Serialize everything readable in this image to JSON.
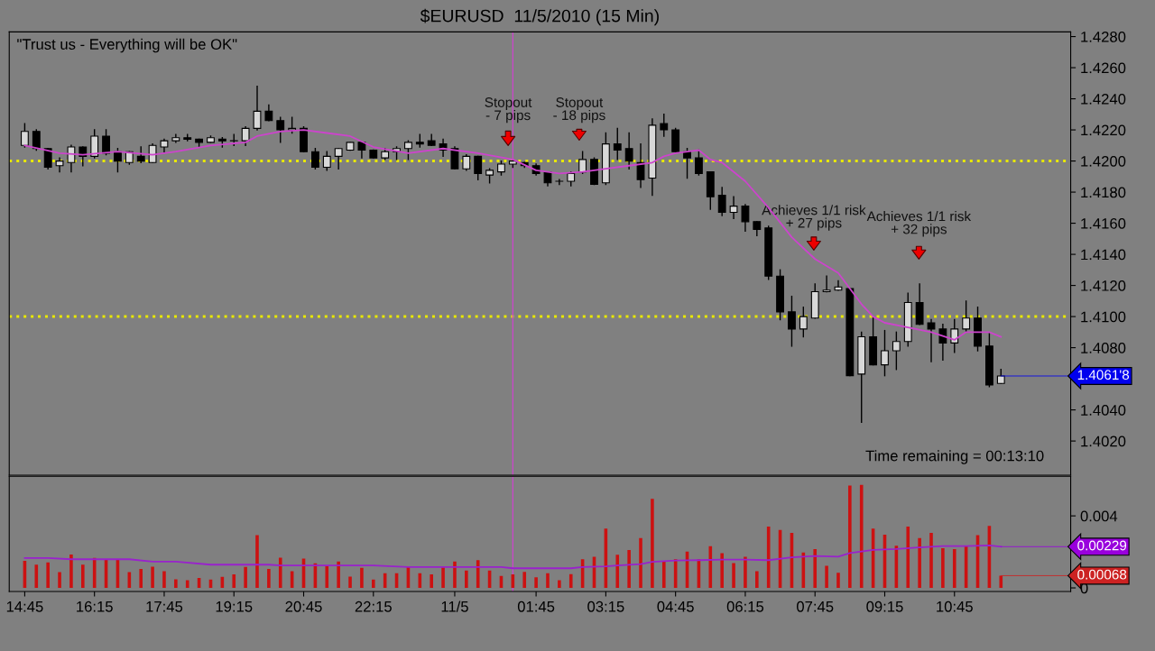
{
  "chart_data": [
    {
      "type": "candlestick",
      "title": "$EURUSD  11/5/2010 (15 Min)",
      "x": [
        "2010-11-04T14:45",
        "2010-11-04T15:00",
        "2010-11-04T15:15",
        "2010-11-04T15:30",
        "2010-11-04T15:45",
        "2010-11-04T16:00",
        "2010-11-04T16:15",
        "2010-11-04T16:30",
        "2010-11-04T16:45",
        "2010-11-04T17:00",
        "2010-11-04T17:15",
        "2010-11-04T17:30",
        "2010-11-04T17:45",
        "2010-11-04T18:00",
        "2010-11-04T18:15",
        "2010-11-04T18:30",
        "2010-11-04T18:45",
        "2010-11-04T19:00",
        "2010-11-04T19:15",
        "2010-11-04T19:30",
        "2010-11-04T19:45",
        "2010-11-04T20:00",
        "2010-11-04T20:15",
        "2010-11-04T20:30",
        "2010-11-04T20:45",
        "2010-11-04T21:00",
        "2010-11-04T21:15",
        "2010-11-04T21:30",
        "2010-11-04T21:45",
        "2010-11-04T22:00",
        "2010-11-04T22:15",
        "2010-11-04T22:30",
        "2010-11-04T22:45",
        "2010-11-04T23:00",
        "2010-11-04T23:15",
        "2010-11-04T23:30",
        "2010-11-04T23:45",
        "2010-11-05T00:00",
        "2010-11-05T00:15",
        "2010-11-05T00:30",
        "2010-11-05T00:45",
        "2010-11-05T01:00",
        "2010-11-05T01:15",
        "2010-11-05T01:30",
        "2010-11-05T01:45",
        "2010-11-05T02:00",
        "2010-11-05T02:15",
        "2010-11-05T02:30",
        "2010-11-05T02:45",
        "2010-11-05T03:00",
        "2010-11-05T03:15",
        "2010-11-05T03:30",
        "2010-11-05T03:45",
        "2010-11-05T04:00",
        "2010-11-05T04:15",
        "2010-11-05T04:30",
        "2010-11-05T04:45",
        "2010-11-05T05:00",
        "2010-11-05T05:15",
        "2010-11-05T05:30",
        "2010-11-05T05:45",
        "2010-11-05T06:00",
        "2010-11-05T06:15",
        "2010-11-05T06:30",
        "2010-11-05T06:45",
        "2010-11-05T07:00",
        "2010-11-05T07:15",
        "2010-11-05T07:30",
        "2010-11-05T07:45",
        "2010-11-05T08:00",
        "2010-11-05T08:15",
        "2010-11-05T08:30",
        "2010-11-05T08:45",
        "2010-11-05T09:00",
        "2010-11-05T09:15",
        "2010-11-05T09:30",
        "2010-11-05T09:45",
        "2010-11-05T10:00",
        "2010-11-05T10:15",
        "2010-11-05T10:30",
        "2010-11-05T10:45",
        "2010-11-05T11:00",
        "2010-11-05T11:15",
        "2010-11-05T11:30",
        "2010-11-05T11:45"
      ],
      "ohlc": [
        [
          1.421,
          1.4224,
          1.4209,
          1.4219
        ],
        [
          1.4219,
          1.422,
          1.4207,
          1.4208
        ],
        [
          1.4208,
          1.4208,
          1.4195,
          1.4196
        ],
        [
          1.4197,
          1.4202,
          1.4193,
          1.42
        ],
        [
          1.4199,
          1.421,
          1.4193,
          1.4209
        ],
        [
          1.4209,
          1.4209,
          1.4197,
          1.4203
        ],
        [
          1.4203,
          1.422,
          1.4202,
          1.4216
        ],
        [
          1.4216,
          1.422,
          1.4204,
          1.4205
        ],
        [
          1.4206,
          1.4208,
          1.4193,
          1.42
        ],
        [
          1.4199,
          1.4206,
          1.4198,
          1.4206
        ],
        [
          1.4203,
          1.4209,
          1.4199,
          1.42
        ],
        [
          1.4199,
          1.4211,
          1.4199,
          1.421
        ],
        [
          1.4209,
          1.4214,
          1.4206,
          1.4213
        ],
        [
          1.4213,
          1.4217,
          1.4212,
          1.4215
        ],
        [
          1.4215,
          1.4217,
          1.4213,
          1.4214
        ],
        [
          1.4214,
          1.4214,
          1.4209,
          1.4212
        ],
        [
          1.4212,
          1.4216,
          1.4212,
          1.4215
        ],
        [
          1.4214,
          1.4215,
          1.4209,
          1.4213
        ],
        [
          1.4213,
          1.4217,
          1.421,
          1.4213
        ],
        [
          1.4213,
          1.4222,
          1.421,
          1.4221
        ],
        [
          1.4221,
          1.4248,
          1.422,
          1.4232
        ],
        [
          1.4232,
          1.4236,
          1.4226,
          1.4226
        ],
        [
          1.4226,
          1.4228,
          1.4212,
          1.422
        ],
        [
          1.422,
          1.4228,
          1.4218,
          1.4221
        ],
        [
          1.4221,
          1.4222,
          1.4206,
          1.4206
        ],
        [
          1.4206,
          1.4208,
          1.4195,
          1.4196
        ],
        [
          1.4196,
          1.4206,
          1.4194,
          1.4203
        ],
        [
          1.4203,
          1.4208,
          1.4195,
          1.4208
        ],
        [
          1.4207,
          1.4212,
          1.4207,
          1.4212
        ],
        [
          1.4212,
          1.4212,
          1.4202,
          1.4207
        ],
        [
          1.4207,
          1.4207,
          1.4202,
          1.4202
        ],
        [
          1.4202,
          1.4208,
          1.4201,
          1.4206
        ],
        [
          1.4206,
          1.4209,
          1.4201,
          1.4208
        ],
        [
          1.4208,
          1.4213,
          1.4201,
          1.4212
        ],
        [
          1.4212,
          1.4217,
          1.4209,
          1.4211
        ],
        [
          1.4213,
          1.4217,
          1.421,
          1.421
        ],
        [
          1.4211,
          1.4214,
          1.4203,
          1.4207
        ],
        [
          1.4208,
          1.4209,
          1.4195,
          1.4195
        ],
        [
          1.4195,
          1.4204,
          1.4194,
          1.4203
        ],
        [
          1.4203,
          1.4203,
          1.4188,
          1.4192
        ],
        [
          1.4191,
          1.4195,
          1.4186,
          1.4194
        ],
        [
          1.4193,
          1.42,
          1.4191,
          1.4198
        ],
        [
          1.4198,
          1.4201,
          1.4196,
          1.42
        ],
        [
          1.4199,
          1.4199,
          1.4196,
          1.4197
        ],
        [
          1.4197,
          1.4198,
          1.4191,
          1.4192
        ],
        [
          1.4193,
          1.4193,
          1.4184,
          1.4186
        ],
        [
          1.4187,
          1.4188,
          1.4185,
          1.4187
        ],
        [
          1.4187,
          1.4193,
          1.4184,
          1.4192
        ],
        [
          1.4193,
          1.4206,
          1.4192,
          1.4201
        ],
        [
          1.4201,
          1.4202,
          1.4185,
          1.4185
        ],
        [
          1.4186,
          1.4218,
          1.4185,
          1.4211
        ],
        [
          1.4211,
          1.4221,
          1.4201,
          1.4207
        ],
        [
          1.4208,
          1.4218,
          1.4195,
          1.42
        ],
        [
          1.4199,
          1.4211,
          1.4183,
          1.4188
        ],
        [
          1.4189,
          1.4227,
          1.4178,
          1.4223
        ],
        [
          1.4224,
          1.423,
          1.4216,
          1.422
        ],
        [
          1.422,
          1.4221,
          1.4206,
          1.4206
        ],
        [
          1.4206,
          1.4208,
          1.4189,
          1.4202
        ],
        [
          1.4202,
          1.4207,
          1.4191,
          1.4192
        ],
        [
          1.4193,
          1.4193,
          1.4169,
          1.4177
        ],
        [
          1.4178,
          1.4183,
          1.4165,
          1.4167
        ],
        [
          1.4167,
          1.4177,
          1.4163,
          1.4171
        ],
        [
          1.4171,
          1.4172,
          1.4155,
          1.4161
        ],
        [
          1.4161,
          1.4161,
          1.4152,
          1.4156
        ],
        [
          1.4157,
          1.4158,
          1.4124,
          1.4126
        ],
        [
          1.4126,
          1.413,
          1.4098,
          1.4103
        ],
        [
          1.4103,
          1.4113,
          1.4081,
          1.4092
        ],
        [
          1.4092,
          1.4106,
          1.4087,
          1.41
        ],
        [
          1.4099,
          1.4121,
          1.4099,
          1.4116
        ],
        [
          1.4116,
          1.4126,
          1.4116,
          1.4117
        ],
        [
          1.4117,
          1.4123,
          1.4117,
          1.4119
        ],
        [
          1.4118,
          1.4118,
          1.4062,
          1.4062
        ],
        [
          1.4063,
          1.409,
          1.4032,
          1.4087
        ],
        [
          1.4087,
          1.4099,
          1.4069,
          1.4069
        ],
        [
          1.4069,
          1.4091,
          1.4062,
          1.4078
        ],
        [
          1.4078,
          1.409,
          1.4066,
          1.4084
        ],
        [
          1.4084,
          1.4115,
          1.4081,
          1.4109
        ],
        [
          1.4109,
          1.4121,
          1.4095,
          1.4095
        ],
        [
          1.4096,
          1.4098,
          1.4071,
          1.4092
        ],
        [
          1.4092,
          1.4095,
          1.4072,
          1.4083
        ],
        [
          1.4083,
          1.4098,
          1.4077,
          1.4092
        ],
        [
          1.4092,
          1.411,
          1.409,
          1.4099
        ],
        [
          1.4099,
          1.4106,
          1.4078,
          1.4081
        ],
        [
          1.4081,
          1.4089,
          1.4055,
          1.4056
        ],
        [
          1.4057,
          1.4066,
          1.4057,
          1.40618
        ]
      ],
      "series": [
        {
          "type": "line",
          "color": "#cc44cc",
          "x": [
            "2010-11-04T14:45",
            "2010-11-04T15:30",
            "2010-11-04T16:00",
            "2010-11-04T16:45",
            "2010-11-04T17:30",
            "2010-11-04T18:00",
            "2010-11-04T18:45",
            "2010-11-04T19:30",
            "2010-11-04T19:45",
            "2010-11-04T20:15",
            "2010-11-04T20:45",
            "2010-11-04T21:15",
            "2010-11-04T21:45",
            "2010-11-04T22:15",
            "2010-11-04T23:00",
            "2010-11-04T23:45",
            "2010-11-05T00:30",
            "2010-11-05T01:15",
            "2010-11-05T01:45",
            "2010-11-05T02:15",
            "2010-11-05T02:45",
            "2010-11-05T03:15",
            "2010-11-05T03:45",
            "2010-11-05T04:15",
            "2010-11-05T04:30",
            "2010-11-05T04:45",
            "2010-11-05T05:15",
            "2010-11-05T05:30",
            "2010-11-05T05:45",
            "2010-11-05T06:15",
            "2010-11-05T06:45",
            "2010-11-05T07:15",
            "2010-11-05T07:45",
            "2010-11-05T08:15",
            "2010-11-05T08:30",
            "2010-11-05T08:45",
            "2010-11-05T09:00",
            "2010-11-05T09:15",
            "2010-11-05T09:45",
            "2010-11-05T10:15",
            "2010-11-05T10:45",
            "2010-11-05T11:00",
            "2010-11-05T11:15",
            "2010-11-05T11:30",
            "2010-11-05T11:45"
          ],
          "values": [
            1.421,
            1.4205,
            1.4204,
            1.4206,
            1.4204,
            1.4206,
            1.421,
            1.4212,
            1.4216,
            1.4219,
            1.422,
            1.4218,
            1.4216,
            1.4209,
            1.4205,
            1.4208,
            1.4205,
            1.4201,
            1.4194,
            1.4192,
            1.4193,
            1.4195,
            1.4197,
            1.4199,
            1.4203,
            1.4205,
            1.4207,
            1.4201,
            1.4199,
            1.4187,
            1.417,
            1.4151,
            1.4137,
            1.4128,
            1.4118,
            1.4108,
            1.41,
            1.4096,
            1.4093,
            1.409,
            1.4085,
            1.409,
            1.409,
            1.409,
            1.4087
          ]
        }
      ],
      "xlim": [
        "2010-11-04T14:25",
        "2010-11-05T13:15"
      ],
      "ylim": [
        1.3998,
        1.4283
      ],
      "yticks": [
        {
          "value": 1.402,
          "label": "1.4020"
        },
        {
          "value": 1.404,
          "label": "1.4040"
        },
        {
          "value": 1.408,
          "label": "1.4080"
        },
        {
          "value": 1.41,
          "label": "1.4100"
        },
        {
          "value": 1.412,
          "label": "1.4120"
        },
        {
          "value": 1.414,
          "label": "1.4140"
        },
        {
          "value": 1.416,
          "label": "1.4160"
        },
        {
          "value": 1.418,
          "label": "1.4180"
        },
        {
          "value": 1.42,
          "label": "1.4200"
        },
        {
          "value": 1.422,
          "label": "1.4220"
        },
        {
          "value": 1.424,
          "label": "1.4240"
        },
        {
          "value": 1.426,
          "label": "1.4260"
        },
        {
          "value": 1.428,
          "label": "1.4280"
        }
      ],
      "tick_labels": "y",
      "ref_lines": [
        {
          "axis": "y",
          "value": 1.42,
          "color": "#e8e800",
          "line_style": "dotted"
        },
        {
          "axis": "y",
          "value": 1.41,
          "color": "#e8e800",
          "line_style": "dotted"
        },
        {
          "axis": "x",
          "value": "2010-11-05T01:15",
          "color": "#cc44cc",
          "line_style": "solid"
        }
      ],
      "annotations": [
        "\"Trust us - Everything will be OK\"",
        "Stopout\n- 7 pips",
        "Stopout\n- 18 pips",
        "Achieves 1/1 risk\n+ 27 pips",
        "Achieves 1/1 risk\n+ 32 pips",
        {
          "text": "1.4061'8",
          "x": "2010-11-05T11:45",
          "y": 1.40618
        },
        "Time remaining = 00:13:10"
      ]
    },
    {
      "type": "bar",
      "x": [
        "2010-11-04T14:45",
        "2010-11-04T15:00",
        "2010-11-04T15:15",
        "2010-11-04T15:30",
        "2010-11-04T15:45",
        "2010-11-04T16:00",
        "2010-11-04T16:15",
        "2010-11-04T16:30",
        "2010-11-04T16:45",
        "2010-11-04T17:00",
        "2010-11-04T17:15",
        "2010-11-04T17:30",
        "2010-11-04T17:45",
        "2010-11-04T18:00",
        "2010-11-04T18:15",
        "2010-11-04T18:30",
        "2010-11-04T18:45",
        "2010-11-04T19:00",
        "2010-11-04T19:15",
        "2010-11-04T19:30",
        "2010-11-04T19:45",
        "2010-11-04T20:00",
        "2010-11-04T20:15",
        "2010-11-04T20:30",
        "2010-11-04T20:45",
        "2010-11-04T21:00",
        "2010-11-04T21:15",
        "2010-11-04T21:30",
        "2010-11-04T21:45",
        "2010-11-04T22:00",
        "2010-11-04T22:15",
        "2010-11-04T22:30",
        "2010-11-04T22:45",
        "2010-11-04T23:00",
        "2010-11-04T23:15",
        "2010-11-04T23:30",
        "2010-11-04T23:45",
        "2010-11-05T00:00",
        "2010-11-05T00:15",
        "2010-11-05T00:30",
        "2010-11-05T00:45",
        "2010-11-05T01:00",
        "2010-11-05T01:15",
        "2010-11-05T01:30",
        "2010-11-05T01:45",
        "2010-11-05T02:00",
        "2010-11-05T02:15",
        "2010-11-05T02:30",
        "2010-11-05T02:45",
        "2010-11-05T03:00",
        "2010-11-05T03:15",
        "2010-11-05T03:30",
        "2010-11-05T03:45",
        "2010-11-05T04:00",
        "2010-11-05T04:15",
        "2010-11-05T04:30",
        "2010-11-05T04:45",
        "2010-11-05T05:00",
        "2010-11-05T05:15",
        "2010-11-05T05:30",
        "2010-11-05T05:45",
        "2010-11-05T06:00",
        "2010-11-05T06:15",
        "2010-11-05T06:30",
        "2010-11-05T06:45",
        "2010-11-05T07:00",
        "2010-11-05T07:15",
        "2010-11-05T07:30",
        "2010-11-05T07:45",
        "2010-11-05T08:00",
        "2010-11-05T08:15",
        "2010-11-05T08:30",
        "2010-11-05T08:45",
        "2010-11-05T09:00",
        "2010-11-05T09:15",
        "2010-11-05T09:30",
        "2010-11-05T09:45",
        "2010-11-05T10:00",
        "2010-11-05T10:15",
        "2010-11-05T10:30",
        "2010-11-05T10:45",
        "2010-11-05T11:00",
        "2010-11-05T11:15",
        "2010-11-05T11:30",
        "2010-11-05T11:45"
      ],
      "series": [
        {
          "type": "bar",
          "color": "#cc1111",
          "values": [
            0.0015,
            0.00129,
            0.00141,
            0.00088,
            0.00186,
            0.00129,
            0.00166,
            0.00159,
            0.00159,
            0.00088,
            0.00105,
            0.00118,
            0.00093,
            0.00048,
            0.00043,
            0.00055,
            0.00046,
            0.00061,
            0.00075,
            0.00116,
            0.00293,
            0.00105,
            0.00168,
            0.00093,
            0.00163,
            0.00136,
            0.00125,
            0.00146,
            0.00063,
            0.00111,
            0.00046,
            0.00082,
            0.00082,
            0.00118,
            0.00082,
            0.00075,
            0.00114,
            0.00146,
            0.00096,
            0.00154,
            0.00096,
            0.00066,
            0.00075,
            0.00089,
            0.00059,
            0.00082,
            0.00043,
            0.00077,
            0.00159,
            0.00173,
            0.00329,
            0.00184,
            0.00211,
            0.00277,
            0.00495,
            0.00148,
            0.00159,
            0.00202,
            0.00159,
            0.00232,
            0.00193,
            0.00138,
            0.00173,
            0.00093,
            0.00341,
            0.00322,
            0.00306,
            0.00197,
            0.00216,
            0.00123,
            0.00084,
            0.00568,
            0.00572,
            0.00329,
            0.00295,
            0.00234,
            0.00341,
            0.00277,
            0.00306,
            0.0022,
            0.00216,
            0.00232,
            0.00293,
            0.00345,
            0.00068
          ]
        },
        {
          "type": "line",
          "color": "#9922cc",
          "x": [
            "2010-11-04T14:45",
            "2010-11-04T15:15",
            "2010-11-04T15:45",
            "2010-11-04T17:00",
            "2010-11-04T17:30",
            "2010-11-04T18:00",
            "2010-11-04T18:45",
            "2010-11-04T20:00",
            "2010-11-04T20:15",
            "2010-11-04T22:15",
            "2010-11-04T23:00",
            "2010-11-05T01:00",
            "2010-11-05T01:15",
            "2010-11-05T02:30",
            "2010-11-05T02:45",
            "2010-11-05T03:15",
            "2010-11-05T03:30",
            "2010-11-05T04:00",
            "2010-11-05T04:15",
            "2010-11-05T04:45",
            "2010-11-05T05:15",
            "2010-11-05T05:45",
            "2010-11-05T06:15",
            "2010-11-05T06:45",
            "2010-11-05T07:15",
            "2010-11-05T07:45",
            "2010-11-05T08:15",
            "2010-11-05T08:30",
            "2010-11-05T09:00",
            "2010-11-05T09:30",
            "2010-11-05T10:00",
            "2010-11-05T10:30",
            "2010-11-05T11:00",
            "2010-11-05T11:30",
            "2010-11-05T11:45"
          ],
          "values": [
            0.00166,
            0.00166,
            0.00159,
            0.00159,
            0.00146,
            0.00146,
            0.00129,
            0.00129,
            0.00125,
            0.00125,
            0.00116,
            0.00116,
            0.00109,
            0.00109,
            0.00116,
            0.0012,
            0.00125,
            0.00132,
            0.00145,
            0.00152,
            0.00154,
            0.00157,
            0.00157,
            0.00154,
            0.0017,
            0.00177,
            0.00173,
            0.00193,
            0.00211,
            0.00216,
            0.00225,
            0.00232,
            0.00232,
            0.00236,
            0.00229
          ]
        }
      ],
      "xlim": [
        "2010-11-04T14:25",
        "2010-11-05T13:15"
      ],
      "ylim": [
        -0.0002,
        0.0062
      ],
      "xticks": [
        {
          "value": "2010-11-04T14:45",
          "label": "14:45"
        },
        {
          "value": "2010-11-04T16:15",
          "label": "16:15"
        },
        {
          "value": "2010-11-04T17:45",
          "label": "17:45"
        },
        {
          "value": "2010-11-04T19:15",
          "label": "19:15"
        },
        {
          "value": "2010-11-04T20:45",
          "label": "20:45"
        },
        {
          "value": "2010-11-04T22:15",
          "label": "22:15"
        },
        {
          "value": "2010-11-05T00:00",
          "label": "11/5"
        },
        {
          "value": "2010-11-05T01:45",
          "label": "01:45"
        },
        {
          "value": "2010-11-05T03:15",
          "label": "03:15"
        },
        {
          "value": "2010-11-05T04:45",
          "label": "04:45"
        },
        {
          "value": "2010-11-05T06:15",
          "label": "06:15"
        },
        {
          "value": "2010-11-05T07:45",
          "label": "07:45"
        },
        {
          "value": "2010-11-05T09:15",
          "label": "09:15"
        },
        {
          "value": "2010-11-05T10:45",
          "label": "10:45"
        }
      ],
      "yticks": [
        0,
        0.004
      ],
      "ref_lines": [
        {
          "axis": "x",
          "value": "2010-11-05T01:15",
          "color": "#cc44cc",
          "line_style": "solid"
        }
      ],
      "annotations": [
        {
          "text": "0.00229",
          "x": "2010-11-05T11:45",
          "y": 0.00229
        },
        {
          "text": "0.00068",
          "x": "2010-11-05T11:45",
          "y": 0.00068
        }
      ]
    }
  ]
}
